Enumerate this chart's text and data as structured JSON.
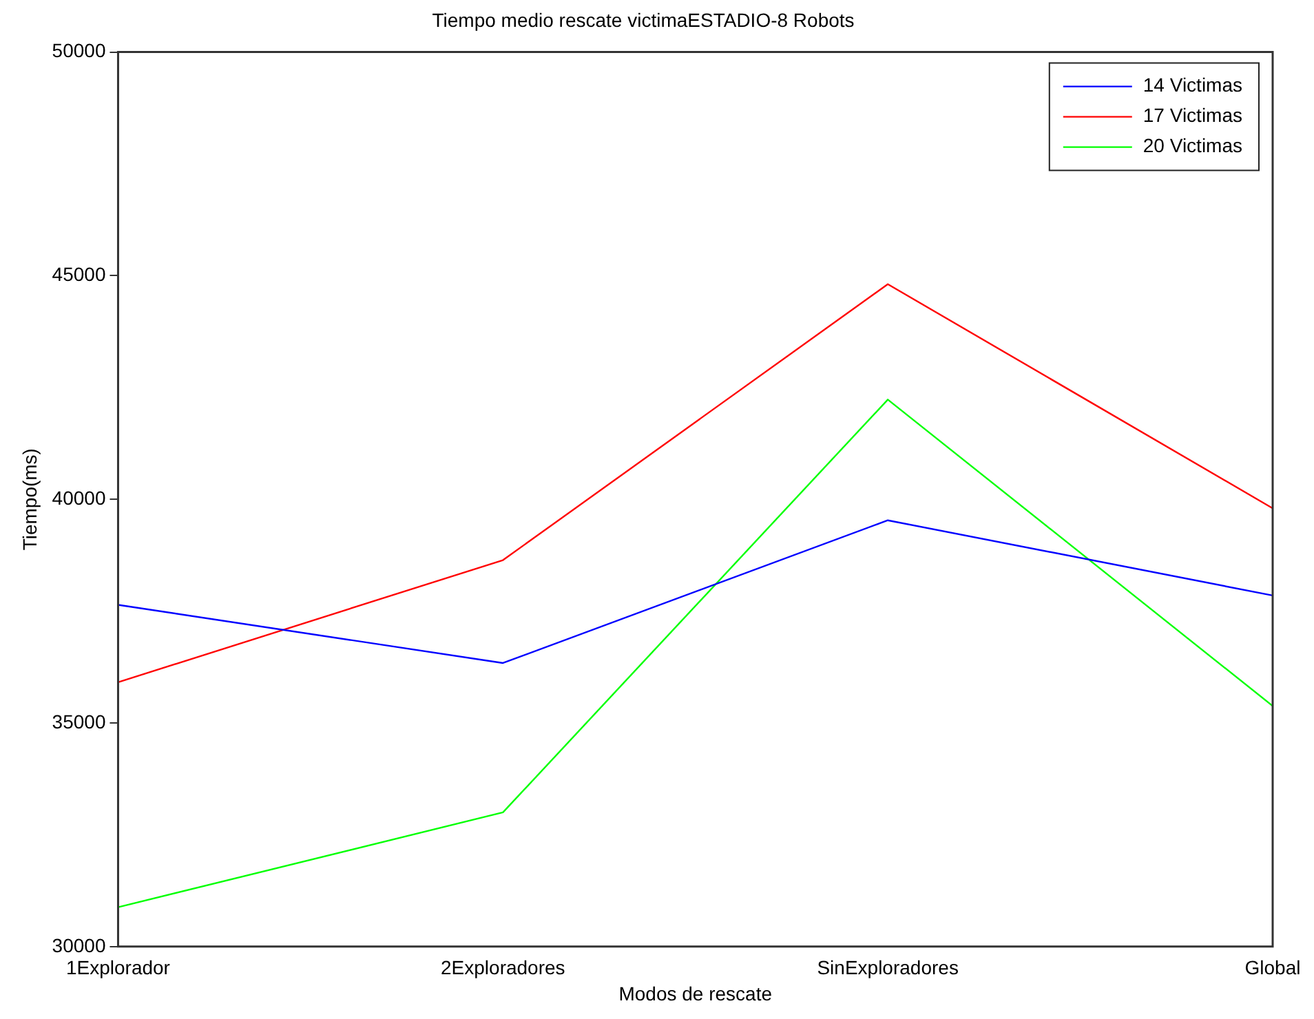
{
  "chart_data": {
    "type": "line",
    "title": "Tiempo medio rescate victimaESTADIO-8 Robots",
    "xlabel": "Modos de rescate",
    "ylabel": "Tiempo(ms)",
    "categories": [
      "1Explorador",
      "2Exploradores",
      "SinExploradores",
      "Global"
    ],
    "series": [
      {
        "name": "14 Victimas",
        "color": "#0000ff",
        "values": [
          37640,
          36340,
          39530,
          37850
        ]
      },
      {
        "name": "17 Victimas",
        "color": "#ff0000",
        "values": [
          35910,
          38640,
          44810,
          39800
        ]
      },
      {
        "name": "20 Victimas",
        "color": "#00ff00",
        "values": [
          30880,
          33000,
          42230,
          35380
        ]
      }
    ],
    "ylim": [
      30000,
      50000
    ],
    "yticks": [
      30000,
      35000,
      40000,
      45000,
      50000
    ],
    "grid": false,
    "legend": "top right",
    "marker": "none",
    "line_style": "solid"
  }
}
